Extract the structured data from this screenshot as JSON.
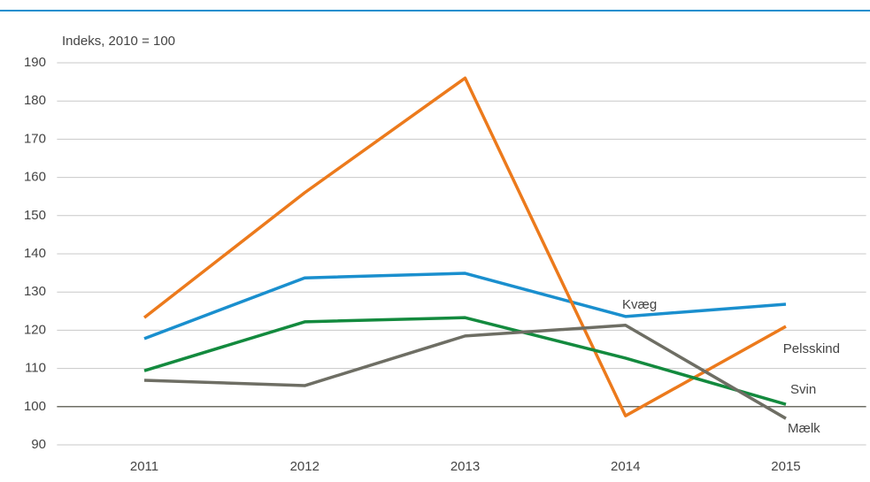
{
  "chart_data": {
    "type": "line",
    "y_label": "Indeks, 2010 = 100",
    "categories": [
      "2011",
      "2012",
      "2013",
      "2014",
      "2015"
    ],
    "series": [
      {
        "name": "Kvæg",
        "color": "#1a8fce",
        "values": [
          117.8,
          133.7,
          134.9,
          123.6,
          126.8
        ]
      },
      {
        "name": "Pelsskind",
        "color": "#ec7a1c",
        "values": [
          123.3,
          156,
          186,
          97.6,
          121
        ]
      },
      {
        "name": "Svin",
        "color": "#138a3e",
        "values": [
          109.4,
          122.2,
          123.3,
          112.7,
          100.6
        ]
      },
      {
        "name": "Mælk",
        "color": "#6e6e64",
        "values": [
          106.9,
          105.5,
          118.5,
          121.3,
          96.9
        ]
      }
    ],
    "ylim": [
      90,
      190
    ],
    "yticks": [
      90,
      100,
      110,
      120,
      130,
      140,
      150,
      160,
      170,
      180,
      190
    ],
    "grid": true,
    "baseline": 100
  }
}
